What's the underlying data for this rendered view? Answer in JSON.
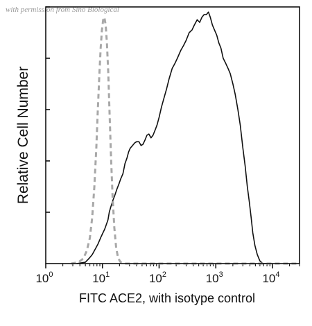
{
  "watermark": "with permission from Sino Biological",
  "chart_data": {
    "type": "line",
    "title": "",
    "xlabel": "FITC ACE2, with isotype control",
    "ylabel": "Relative Cell Number",
    "x_scale": "log",
    "xlim": [
      1,
      30000
    ],
    "ylim": [
      0,
      1.0
    ],
    "x_ticks": [
      {
        "value": 1,
        "base": "10",
        "exp": "0"
      },
      {
        "value": 10,
        "base": "10",
        "exp": "1"
      },
      {
        "value": 100,
        "base": "10",
        "exp": "2"
      },
      {
        "value": 1000,
        "base": "10",
        "exp": "3"
      },
      {
        "value": 10000,
        "base": "10",
        "exp": "4"
      }
    ],
    "y_ticks": [
      0.2,
      0.4,
      0.6,
      0.8,
      1.0
    ],
    "grid": false,
    "series": [
      {
        "style": "solid",
        "color": "#111111",
        "points": [
          [
            3.5,
            0.0
          ],
          [
            5.0,
            0.005
          ],
          [
            5.8,
            0.02
          ],
          [
            6.6,
            0.035
          ],
          [
            7.4,
            0.055
          ],
          [
            8.3,
            0.075
          ],
          [
            9.5,
            0.105
          ],
          [
            11,
            0.135
          ],
          [
            12.5,
            0.17
          ],
          [
            13.2,
            0.2
          ],
          [
            14,
            0.22
          ],
          [
            15.5,
            0.25
          ],
          [
            16.5,
            0.265
          ],
          [
            18,
            0.29
          ],
          [
            19.5,
            0.31
          ],
          [
            21,
            0.33
          ],
          [
            23,
            0.35
          ],
          [
            25,
            0.39
          ],
          [
            27,
            0.41
          ],
          [
            29,
            0.435
          ],
          [
            31,
            0.45
          ],
          [
            34,
            0.46
          ],
          [
            37,
            0.47
          ],
          [
            40,
            0.475
          ],
          [
            44,
            0.475
          ],
          [
            48,
            0.46
          ],
          [
            52,
            0.465
          ],
          [
            56,
            0.48
          ],
          [
            61,
            0.5
          ],
          [
            66,
            0.505
          ],
          [
            72,
            0.49
          ],
          [
            78,
            0.5
          ],
          [
            85,
            0.52
          ],
          [
            92,
            0.54
          ],
          [
            100,
            0.57
          ],
          [
            110,
            0.61
          ],
          [
            120,
            0.64
          ],
          [
            135,
            0.68
          ],
          [
            150,
            0.72
          ],
          [
            170,
            0.76
          ],
          [
            190,
            0.78
          ],
          [
            210,
            0.8
          ],
          [
            240,
            0.83
          ],
          [
            270,
            0.85
          ],
          [
            300,
            0.87
          ],
          [
            340,
            0.9
          ],
          [
            380,
            0.91
          ],
          [
            420,
            0.93
          ],
          [
            470,
            0.95
          ],
          [
            520,
            0.94
          ],
          [
            570,
            0.96
          ],
          [
            620,
            0.97
          ],
          [
            680,
            0.97
          ],
          [
            740,
            0.98
          ],
          [
            800,
            0.96
          ],
          [
            870,
            0.93
          ],
          [
            950,
            0.91
          ],
          [
            1040,
            0.89
          ],
          [
            1130,
            0.86
          ],
          [
            1230,
            0.84
          ],
          [
            1350,
            0.8
          ],
          [
            1500,
            0.78
          ],
          [
            1650,
            0.76
          ],
          [
            1800,
            0.74
          ],
          [
            2000,
            0.7
          ],
          [
            2200,
            0.66
          ],
          [
            2450,
            0.6
          ],
          [
            2700,
            0.54
          ],
          [
            3000,
            0.45
          ],
          [
            3300,
            0.38
          ],
          [
            3600,
            0.3
          ],
          [
            3900,
            0.24
          ],
          [
            4200,
            0.18
          ],
          [
            4500,
            0.12
          ],
          [
            4900,
            0.07
          ],
          [
            5400,
            0.035
          ],
          [
            6000,
            0.01
          ],
          [
            6800,
            0.0
          ],
          [
            8000,
            0.0
          ]
        ]
      },
      {
        "style": "dashed",
        "color": "#a8a8a8",
        "points": [
          [
            2.8,
            0.0
          ],
          [
            3.8,
            0.005
          ],
          [
            4.6,
            0.02
          ],
          [
            5.3,
            0.05
          ],
          [
            6.0,
            0.1
          ],
          [
            6.6,
            0.18
          ],
          [
            7.2,
            0.3
          ],
          [
            7.8,
            0.45
          ],
          [
            8.3,
            0.6
          ],
          [
            8.8,
            0.73
          ],
          [
            9.3,
            0.84
          ],
          [
            9.8,
            0.91
          ],
          [
            10.3,
            0.95
          ],
          [
            10.8,
            0.96
          ],
          [
            11.4,
            0.93
          ],
          [
            12.0,
            0.86
          ],
          [
            12.7,
            0.74
          ],
          [
            13.4,
            0.58
          ],
          [
            14.2,
            0.41
          ],
          [
            15.1,
            0.26
          ],
          [
            16.2,
            0.14
          ],
          [
            17.5,
            0.06
          ],
          [
            19,
            0.02
          ],
          [
            21,
            0.005
          ],
          [
            25,
            0.0
          ],
          [
            100,
            0.0
          ],
          [
            1000,
            0.0
          ],
          [
            10000,
            0.0
          ],
          [
            30000,
            0.0
          ]
        ]
      }
    ]
  }
}
